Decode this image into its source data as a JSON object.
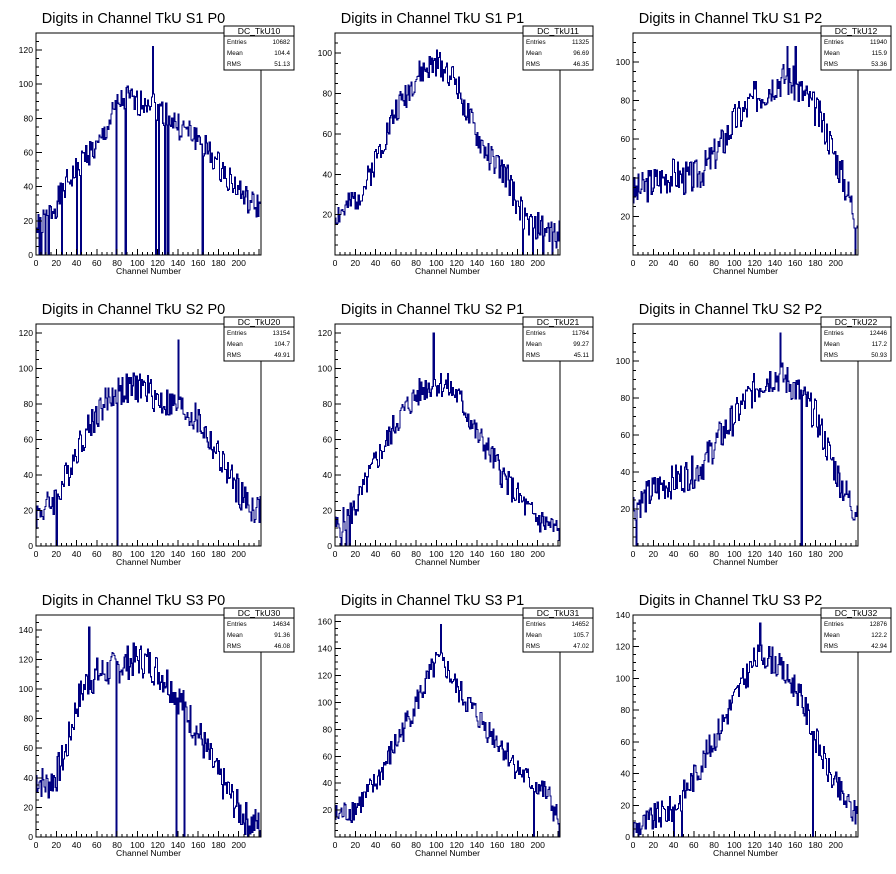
{
  "chart_data": [
    {
      "type": "histogram",
      "title": "Digits in Channel TkU S1 P0",
      "xlabel": "Channel Number",
      "xlim": [
        0,
        222
      ],
      "ylim": [
        0,
        130
      ],
      "xticks": [
        0,
        20,
        40,
        60,
        80,
        100,
        120,
        140,
        160,
        180,
        200
      ],
      "yticks": [
        0,
        20,
        40,
        60,
        80,
        100,
        120
      ],
      "stats": {
        "name": "DC_TkU10",
        "rows": [
          [
            "Entries",
            "10682"
          ],
          [
            "Mean",
            "104.4"
          ],
          [
            "RMS",
            "51.13"
          ]
        ]
      },
      "profile": [
        [
          0,
          15
        ],
        [
          10,
          22
        ],
        [
          20,
          30
        ],
        [
          30,
          42
        ],
        [
          40,
          50
        ],
        [
          50,
          60
        ],
        [
          60,
          62
        ],
        [
          70,
          75
        ],
        [
          80,
          88
        ],
        [
          90,
          92
        ],
        [
          100,
          88
        ],
        [
          110,
          92
        ],
        [
          120,
          86
        ],
        [
          130,
          82
        ],
        [
          140,
          75
        ],
        [
          150,
          72
        ],
        [
          160,
          68
        ],
        [
          170,
          60
        ],
        [
          180,
          52
        ],
        [
          190,
          45
        ],
        [
          200,
          38
        ],
        [
          210,
          30
        ],
        [
          220,
          28
        ]
      ],
      "spikes": [
        [
          3,
          0
        ],
        [
          5,
          0
        ],
        [
          9,
          0
        ],
        [
          12,
          0
        ],
        [
          25,
          0
        ],
        [
          40,
          0
        ],
        [
          44,
          0
        ],
        [
          79,
          0
        ],
        [
          88,
          0
        ],
        [
          115,
          122
        ],
        [
          118,
          0
        ],
        [
          121,
          0
        ],
        [
          127,
          0
        ],
        [
          130,
          0
        ],
        [
          164,
          0
        ]
      ],
      "amp": 8,
      "seed": 1
    },
    {
      "type": "histogram",
      "title": "Digits in Channel TkU S1 P1",
      "xlabel": "Channel Number",
      "xlim": [
        0,
        222
      ],
      "ylim": [
        0,
        110
      ],
      "xticks": [
        0,
        20,
        40,
        60,
        80,
        100,
        120,
        140,
        160,
        180,
        200
      ],
      "yticks": [
        20,
        40,
        60,
        80,
        100
      ],
      "stats": {
        "name": "DC_TkU11",
        "rows": [
          [
            "Entries",
            "11325"
          ],
          [
            "Mean",
            "96.69"
          ],
          [
            "RMS",
            "46.35"
          ]
        ]
      },
      "profile": [
        [
          0,
          20
        ],
        [
          10,
          22
        ],
        [
          20,
          28
        ],
        [
          30,
          35
        ],
        [
          40,
          48
        ],
        [
          50,
          60
        ],
        [
          60,
          72
        ],
        [
          70,
          80
        ],
        [
          80,
          88
        ],
        [
          90,
          92
        ],
        [
          100,
          95
        ],
        [
          110,
          92
        ],
        [
          120,
          85
        ],
        [
          130,
          70
        ],
        [
          140,
          58
        ],
        [
          150,
          50
        ],
        [
          160,
          44
        ],
        [
          170,
          38
        ],
        [
          180,
          25
        ],
        [
          190,
          15
        ],
        [
          200,
          14
        ],
        [
          210,
          12
        ],
        [
          220,
          10
        ]
      ],
      "spikes": [
        [
          185,
          0
        ],
        [
          195,
          0
        ],
        [
          205,
          0
        ],
        [
          214,
          0
        ]
      ],
      "amp": 7,
      "seed": 2
    },
    {
      "type": "histogram",
      "title": "Digits in Channel TkU S1 P2",
      "xlabel": "Channel Number",
      "xlim": [
        0,
        222
      ],
      "ylim": [
        0,
        115
      ],
      "xticks": [
        0,
        20,
        40,
        60,
        80,
        100,
        120,
        140,
        160,
        180,
        200
      ],
      "yticks": [
        20,
        40,
        60,
        80,
        100
      ],
      "stats": {
        "name": "DC_TkU12",
        "rows": [
          [
            "Entries",
            "11940"
          ],
          [
            "Mean",
            "115.9"
          ],
          [
            "RMS",
            "53.36"
          ]
        ]
      },
      "profile": [
        [
          0,
          32
        ],
        [
          10,
          35
        ],
        [
          20,
          38
        ],
        [
          30,
          40
        ],
        [
          40,
          42
        ],
        [
          50,
          40
        ],
        [
          60,
          40
        ],
        [
          70,
          45
        ],
        [
          80,
          52
        ],
        [
          90,
          60
        ],
        [
          100,
          70
        ],
        [
          110,
          75
        ],
        [
          120,
          82
        ],
        [
          130,
          85
        ],
        [
          140,
          90
        ],
        [
          150,
          92
        ],
        [
          160,
          88
        ],
        [
          170,
          82
        ],
        [
          180,
          75
        ],
        [
          190,
          65
        ],
        [
          200,
          50
        ],
        [
          210,
          35
        ],
        [
          218,
          22
        ]
      ],
      "spikes": [
        [
          152,
          108
        ],
        [
          160,
          108
        ],
        [
          219,
          0
        ]
      ],
      "amp": 9,
      "seed": 3
    },
    {
      "type": "histogram",
      "title": "Digits in Channel TkU S2 P0",
      "xlabel": "Channel Number",
      "xlim": [
        0,
        222
      ],
      "ylim": [
        0,
        125
      ],
      "xticks": [
        0,
        20,
        40,
        60,
        80,
        100,
        120,
        140,
        160,
        180,
        200
      ],
      "yticks": [
        0,
        20,
        40,
        60,
        80,
        100,
        120
      ],
      "stats": {
        "name": "DC_TkU20",
        "rows": [
          [
            "Entries",
            "13154"
          ],
          [
            "Mean",
            "104.7"
          ],
          [
            "RMS",
            "49.91"
          ]
        ]
      },
      "profile": [
        [
          0,
          18
        ],
        [
          10,
          22
        ],
        [
          20,
          28
        ],
        [
          30,
          40
        ],
        [
          40,
          55
        ],
        [
          50,
          65
        ],
        [
          60,
          75
        ],
        [
          70,
          82
        ],
        [
          80,
          88
        ],
        [
          90,
          88
        ],
        [
          100,
          90
        ],
        [
          110,
          88
        ],
        [
          120,
          82
        ],
        [
          130,
          80
        ],
        [
          140,
          78
        ],
        [
          150,
          75
        ],
        [
          160,
          70
        ],
        [
          170,
          60
        ],
        [
          180,
          50
        ],
        [
          190,
          40
        ],
        [
          200,
          30
        ],
        [
          210,
          22
        ],
        [
          220,
          20
        ]
      ],
      "spikes": [
        [
          20,
          0
        ],
        [
          80,
          0
        ],
        [
          140,
          116
        ]
      ],
      "amp": 9,
      "seed": 4
    },
    {
      "type": "histogram",
      "title": "Digits in Channel TkU S2 P1",
      "xlabel": "Channel Number",
      "xlim": [
        0,
        222
      ],
      "ylim": [
        0,
        125
      ],
      "xticks": [
        0,
        20,
        40,
        60,
        80,
        100,
        120,
        140,
        160,
        180,
        200
      ],
      "yticks": [
        0,
        20,
        40,
        60,
        80,
        100,
        120
      ],
      "stats": {
        "name": "DC_TkU21",
        "rows": [
          [
            "Entries",
            "11764"
          ],
          [
            "Mean",
            "99.27"
          ],
          [
            "RMS",
            "45.11"
          ]
        ]
      },
      "profile": [
        [
          0,
          10
        ],
        [
          10,
          15
        ],
        [
          20,
          22
        ],
        [
          30,
          35
        ],
        [
          40,
          48
        ],
        [
          50,
          58
        ],
        [
          60,
          70
        ],
        [
          70,
          78
        ],
        [
          80,
          85
        ],
        [
          90,
          90
        ],
        [
          100,
          92
        ],
        [
          110,
          90
        ],
        [
          120,
          85
        ],
        [
          130,
          75
        ],
        [
          140,
          62
        ],
        [
          150,
          55
        ],
        [
          160,
          45
        ],
        [
          170,
          35
        ],
        [
          180,
          28
        ],
        [
          190,
          20
        ],
        [
          200,
          15
        ],
        [
          210,
          12
        ],
        [
          220,
          8
        ]
      ],
      "spikes": [
        [
          6,
          0
        ],
        [
          11,
          0
        ],
        [
          14,
          0
        ],
        [
          97,
          120
        ]
      ],
      "amp": 8,
      "seed": 5
    },
    {
      "type": "histogram",
      "title": "Digits in Channel TkU S2 P2",
      "xlabel": "Channel Number",
      "xlim": [
        0,
        222
      ],
      "ylim": [
        0,
        120
      ],
      "xticks": [
        0,
        20,
        40,
        60,
        80,
        100,
        120,
        140,
        160,
        180,
        200
      ],
      "yticks": [
        20,
        40,
        60,
        80,
        100
      ],
      "stats": {
        "name": "DC_TkU22",
        "rows": [
          [
            "Entries",
            "12446"
          ],
          [
            "Mean",
            "117.2"
          ],
          [
            "RMS",
            "50.93"
          ]
        ]
      },
      "profile": [
        [
          0,
          22
        ],
        [
          10,
          25
        ],
        [
          20,
          30
        ],
        [
          30,
          33
        ],
        [
          40,
          35
        ],
        [
          50,
          38
        ],
        [
          60,
          40
        ],
        [
          70,
          45
        ],
        [
          80,
          55
        ],
        [
          90,
          62
        ],
        [
          100,
          70
        ],
        [
          110,
          78
        ],
        [
          120,
          85
        ],
        [
          130,
          90
        ],
        [
          140,
          92
        ],
        [
          150,
          90
        ],
        [
          160,
          85
        ],
        [
          170,
          78
        ],
        [
          180,
          70
        ],
        [
          190,
          55
        ],
        [
          200,
          40
        ],
        [
          210,
          28
        ],
        [
          218,
          20
        ]
      ],
      "spikes": [
        [
          3,
          0
        ],
        [
          145,
          115
        ],
        [
          166,
          0
        ]
      ],
      "amp": 9,
      "seed": 6
    },
    {
      "type": "histogram",
      "title": "Digits in Channel TkU S3 P0",
      "xlabel": "Channel Number",
      "xlim": [
        0,
        222
      ],
      "ylim": [
        0,
        150
      ],
      "xticks": [
        0,
        20,
        40,
        60,
        80,
        100,
        120,
        140,
        160,
        180,
        200
      ],
      "yticks": [
        0,
        20,
        40,
        60,
        80,
        100,
        120,
        140
      ],
      "stats": {
        "name": "DC_TkU30",
        "rows": [
          [
            "Entries",
            "14634"
          ],
          [
            "Mean",
            "91.36"
          ],
          [
            "RMS",
            "46.08"
          ]
        ]
      },
      "profile": [
        [
          0,
          40
        ],
        [
          10,
          35
        ],
        [
          20,
          42
        ],
        [
          30,
          60
        ],
        [
          40,
          90
        ],
        [
          50,
          105
        ],
        [
          60,
          110
        ],
        [
          70,
          112
        ],
        [
          80,
          115
        ],
        [
          90,
          118
        ],
        [
          100,
          120
        ],
        [
          110,
          118
        ],
        [
          120,
          112
        ],
        [
          130,
          105
        ],
        [
          140,
          95
        ],
        [
          150,
          82
        ],
        [
          160,
          70
        ],
        [
          170,
          55
        ],
        [
          180,
          40
        ],
        [
          190,
          30
        ],
        [
          200,
          18
        ],
        [
          210,
          10
        ],
        [
          220,
          8
        ]
      ],
      "spikes": [
        [
          52,
          142
        ],
        [
          79,
          0
        ],
        [
          138,
          0
        ],
        [
          146,
          0
        ]
      ],
      "amp": 12,
      "seed": 7
    },
    {
      "type": "histogram",
      "title": "Digits in Channel TkU S3 P1",
      "xlabel": "Channel Number",
      "xlim": [
        0,
        222
      ],
      "ylim": [
        0,
        165
      ],
      "xticks": [
        0,
        20,
        40,
        60,
        80,
        100,
        120,
        140,
        160,
        180,
        200
      ],
      "yticks": [
        20,
        40,
        60,
        80,
        100,
        120,
        140,
        160
      ],
      "stats": {
        "name": "DC_TkU31",
        "rows": [
          [
            "Entries",
            "14652"
          ],
          [
            "Mean",
            "105.7"
          ],
          [
            "RMS",
            "47.02"
          ]
        ]
      },
      "profile": [
        [
          0,
          15
        ],
        [
          10,
          18
        ],
        [
          20,
          22
        ],
        [
          30,
          30
        ],
        [
          40,
          40
        ],
        [
          50,
          55
        ],
        [
          60,
          70
        ],
        [
          70,
          85
        ],
        [
          80,
          100
        ],
        [
          90,
          115
        ],
        [
          100,
          130
        ],
        [
          110,
          125
        ],
        [
          120,
          110
        ],
        [
          130,
          100
        ],
        [
          140,
          90
        ],
        [
          150,
          80
        ],
        [
          160,
          72
        ],
        [
          170,
          62
        ],
        [
          180,
          50
        ],
        [
          190,
          42
        ],
        [
          200,
          38
        ],
        [
          210,
          30
        ],
        [
          218,
          15
        ]
      ],
      "spikes": [
        [
          104,
          158
        ],
        [
          196,
          0
        ],
        [
          221,
          0
        ]
      ],
      "amp": 10,
      "seed": 8
    },
    {
      "type": "histogram",
      "title": "Digits in Channel TkU S3 P2",
      "xlabel": "Channel Number",
      "xlim": [
        0,
        222
      ],
      "ylim": [
        0,
        140
      ],
      "xticks": [
        0,
        20,
        40,
        60,
        80,
        100,
        120,
        140,
        160,
        180,
        200
      ],
      "yticks": [
        0,
        20,
        40,
        60,
        80,
        100,
        120,
        140
      ],
      "stats": {
        "name": "DC_TkU32",
        "rows": [
          [
            "Entries",
            "12876"
          ],
          [
            "Mean",
            "122.2"
          ],
          [
            "RMS",
            "42.94"
          ]
        ]
      },
      "profile": [
        [
          0,
          5
        ],
        [
          10,
          8
        ],
        [
          20,
          12
        ],
        [
          30,
          15
        ],
        [
          40,
          18
        ],
        [
          50,
          28
        ],
        [
          60,
          38
        ],
        [
          70,
          50
        ],
        [
          80,
          62
        ],
        [
          90,
          75
        ],
        [
          100,
          88
        ],
        [
          110,
          100
        ],
        [
          120,
          112
        ],
        [
          130,
          115
        ],
        [
          140,
          110
        ],
        [
          150,
          102
        ],
        [
          160,
          95
        ],
        [
          170,
          80
        ],
        [
          180,
          62
        ],
        [
          190,
          45
        ],
        [
          200,
          32
        ],
        [
          210,
          22
        ],
        [
          218,
          15
        ]
      ],
      "spikes": [
        [
          40,
          0
        ],
        [
          48,
          0
        ],
        [
          125,
          135
        ],
        [
          177,
          0
        ]
      ],
      "amp": 9,
      "seed": 9
    }
  ]
}
